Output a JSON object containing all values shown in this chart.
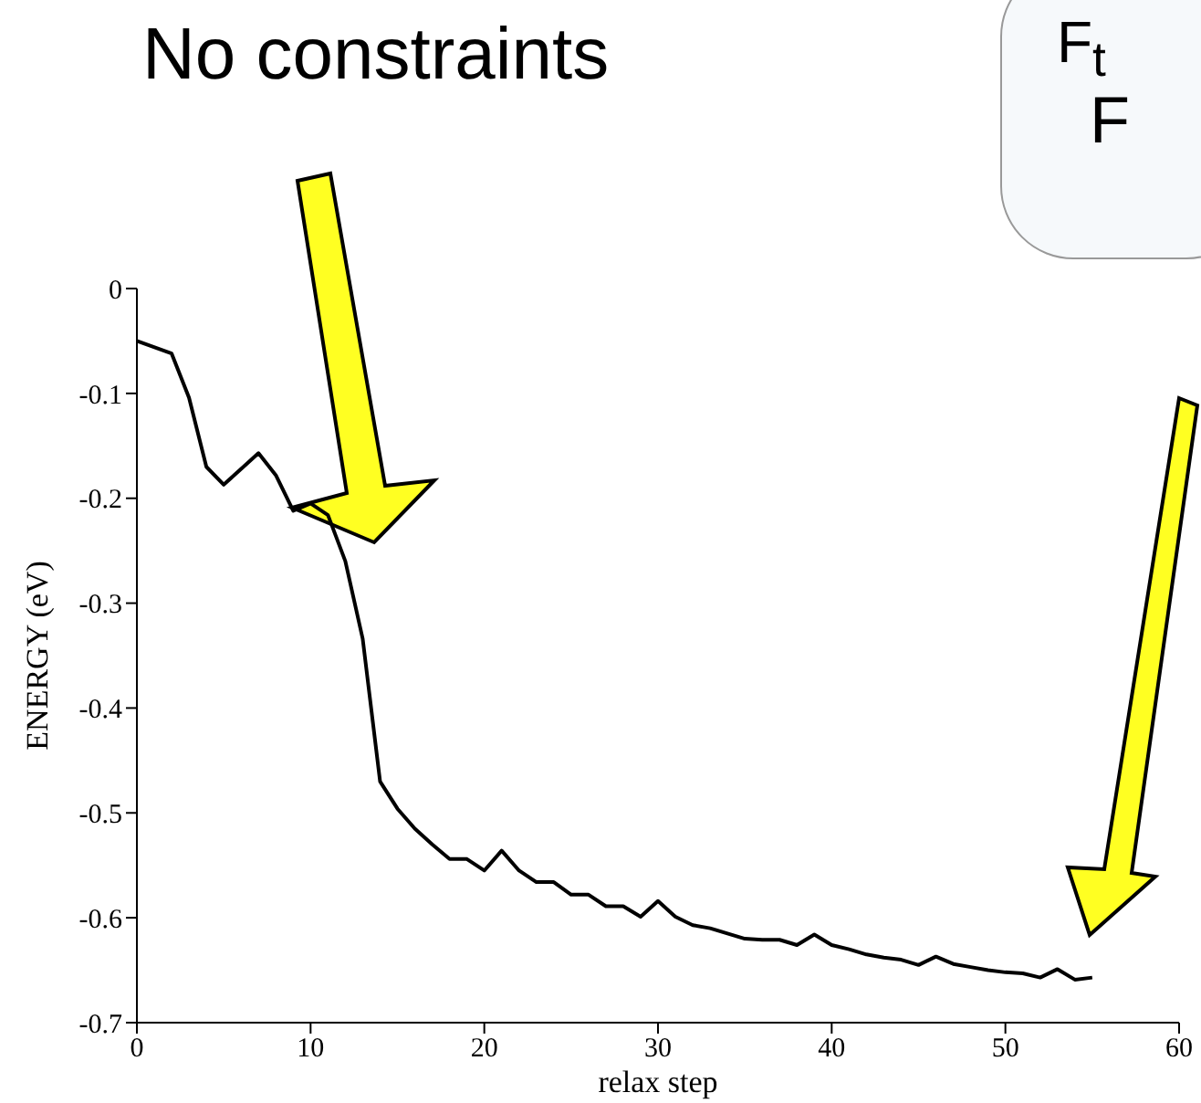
{
  "chart_data": {
    "type": "line",
    "xlabel": "relax step",
    "ylabel": "ENERGY (eV)",
    "annotations": [
      "No constraints",
      "F$_{t}$",
      "F"
    ],
    "x": [
      0,
      2,
      3,
      4,
      5,
      7,
      8,
      9,
      10,
      11,
      12,
      13,
      14,
      15,
      16,
      17,
      18,
      19,
      20,
      21,
      22,
      23,
      24,
      25,
      26,
      27,
      28,
      29,
      30,
      31,
      32,
      33,
      34,
      35,
      36,
      37,
      38,
      39,
      40,
      41,
      42,
      43,
      44,
      45,
      46,
      47,
      48,
      49,
      50,
      51,
      52,
      53,
      54,
      55
    ],
    "series": [
      {
        "color": "#000000",
        "values": [
          -0.05,
          -0.062,
          -0.104,
          -0.17,
          -0.187,
          -0.157,
          -0.178,
          -0.212,
          -0.205,
          -0.216,
          -0.26,
          -0.334,
          -0.47,
          -0.496,
          -0.515,
          -0.53,
          -0.544,
          -0.544,
          -0.555,
          -0.536,
          -0.555,
          -0.566,
          -0.566,
          -0.578,
          -0.578,
          -0.589,
          -0.589,
          -0.599,
          -0.584,
          -0.599,
          -0.607,
          -0.61,
          -0.615,
          -0.62,
          -0.621,
          -0.621,
          -0.626,
          -0.616,
          -0.626,
          -0.63,
          -0.635,
          -0.638,
          -0.64,
          -0.645,
          -0.637,
          -0.644,
          -0.647,
          -0.65,
          -0.652,
          -0.653,
          -0.657,
          -0.649,
          -0.659,
          -0.657
        ]
      }
    ],
    "xlim": [
      0,
      60
    ],
    "xticks": [
      0,
      10,
      20,
      30,
      40,
      50,
      60
    ],
    "ylim": [
      -0.7,
      0
    ],
    "yticks": [
      0,
      -0.1,
      -0.2,
      -0.3,
      -0.4,
      -0.5,
      -0.6,
      -0.7
    ],
    "grid": false,
    "legend": false,
    "marker": "none",
    "line_style": "solid"
  }
}
